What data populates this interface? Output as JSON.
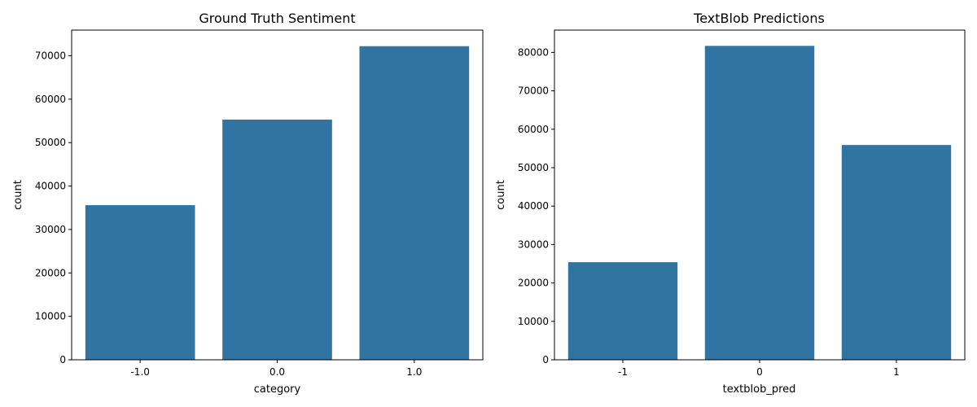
{
  "chart_data": [
    {
      "type": "bar",
      "title": "Ground Truth Sentiment",
      "xlabel": "category",
      "ylabel": "count",
      "categories": [
        "-1.0",
        "0.0",
        "1.0"
      ],
      "values": [
        35600,
        55300,
        72200
      ],
      "ylim": [
        0,
        75900
      ],
      "yticks": [
        0,
        10000,
        20000,
        30000,
        40000,
        50000,
        60000,
        70000
      ],
      "grid": false,
      "bar_color": "#3274a1"
    },
    {
      "type": "bar",
      "title": "TextBlob Predictions",
      "xlabel": "textblob_pred",
      "ylabel": "count",
      "categories": [
        "-1",
        "0",
        "1"
      ],
      "values": [
        25400,
        81700,
        55900
      ],
      "ylim": [
        0,
        85800
      ],
      "yticks": [
        0,
        10000,
        20000,
        30000,
        40000,
        50000,
        60000,
        70000,
        80000
      ],
      "grid": false,
      "bar_color": "#3274a1"
    }
  ]
}
